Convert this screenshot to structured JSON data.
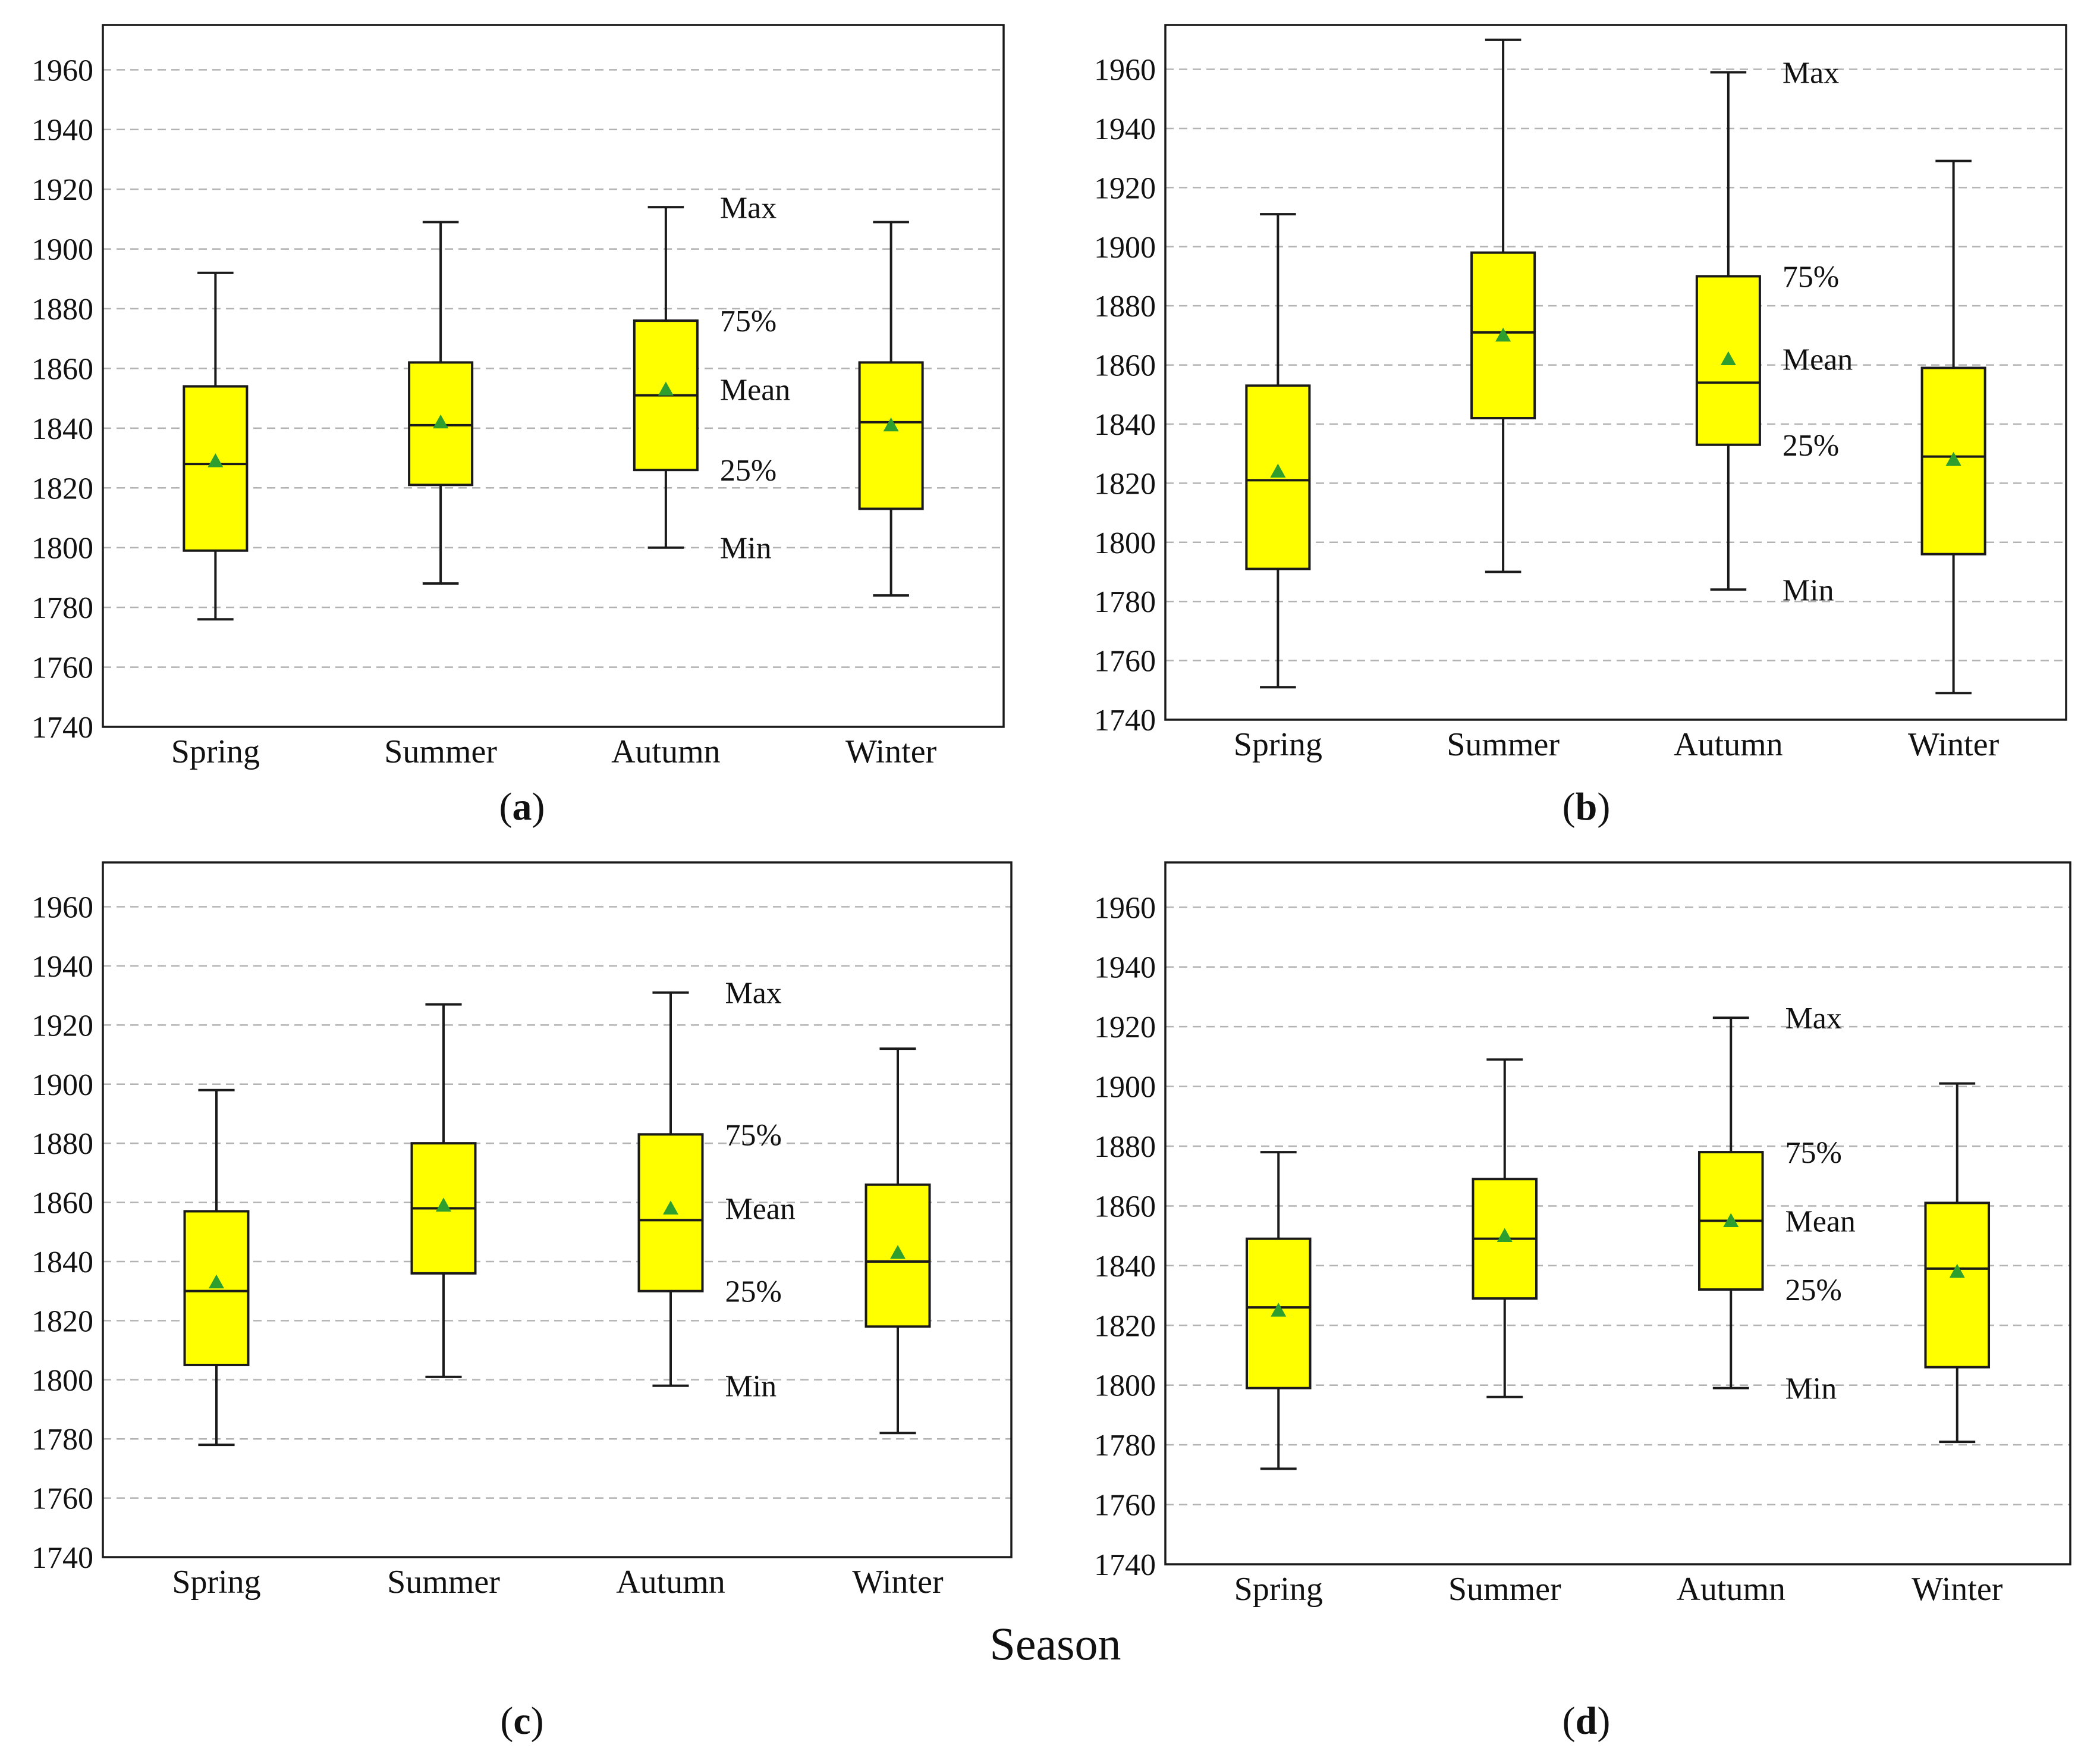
{
  "figure": {
    "xlabel": "Season"
  },
  "style": {
    "box_fill": "#ffff00",
    "box_stroke": "#1a1a1a",
    "mean_marker": "#2e9e2e",
    "grid_color": "#b3b3b3",
    "frame_color": "#1a1a1a"
  },
  "chart_data": [
    {
      "type": "box",
      "panel_label": {
        "open": "(",
        "letter": "a",
        "close": ")"
      },
      "categories": [
        "Spring",
        "Summer",
        "Autumn",
        "Winter"
      ],
      "ylim": [
        1740,
        1975
      ],
      "yticks": [
        1740,
        1760,
        1780,
        1800,
        1820,
        1840,
        1860,
        1880,
        1900,
        1920,
        1940,
        1960
      ],
      "grid": true,
      "boxes": [
        {
          "min": 1776,
          "q1": 1799,
          "median": 1828,
          "q3": 1854,
          "max": 1892,
          "mean": 1829
        },
        {
          "min": 1788,
          "q1": 1821,
          "median": 1841,
          "q3": 1862,
          "max": 1909,
          "mean": 1842
        },
        {
          "min": 1800,
          "q1": 1826,
          "median": 1851,
          "q3": 1876,
          "max": 1914,
          "mean": 1853
        },
        {
          "min": 1784,
          "q1": 1813,
          "median": 1842,
          "q3": 1862,
          "max": 1909,
          "mean": 1841
        }
      ],
      "annotation_box": 2,
      "annotations": [
        "Max",
        "75%",
        "Mean",
        "25%",
        "Min"
      ]
    },
    {
      "type": "box",
      "panel_label": {
        "open": "(",
        "letter": "b",
        "close": ")"
      },
      "categories": [
        "Spring",
        "Summer",
        "Autumn",
        "Winter"
      ],
      "ylim": [
        1740,
        1975
      ],
      "yticks": [
        1740,
        1760,
        1780,
        1800,
        1820,
        1840,
        1860,
        1880,
        1900,
        1920,
        1940,
        1960
      ],
      "grid": true,
      "boxes": [
        {
          "min": 1751,
          "q1": 1791,
          "median": 1821,
          "q3": 1853,
          "max": 1911,
          "mean": 1824
        },
        {
          "min": 1790,
          "q1": 1842,
          "median": 1871,
          "q3": 1898,
          "max": 1970,
          "mean": 1870
        },
        {
          "min": 1784,
          "q1": 1833,
          "median": 1854,
          "q3": 1890,
          "max": 1959,
          "mean": 1862
        },
        {
          "min": 1749,
          "q1": 1796,
          "median": 1829,
          "q3": 1859,
          "max": 1929,
          "mean": 1828
        }
      ],
      "annotation_box": 2,
      "annotations": [
        "Max",
        "75%",
        "Mean",
        "25%",
        "Min"
      ]
    },
    {
      "type": "box",
      "panel_label": {
        "open": "(",
        "letter": "c",
        "close": ")"
      },
      "categories": [
        "Spring",
        "Summer",
        "Autumn",
        "Winter"
      ],
      "ylim": [
        1740,
        1975
      ],
      "yticks": [
        1740,
        1760,
        1780,
        1800,
        1820,
        1840,
        1860,
        1880,
        1900,
        1920,
        1940,
        1960
      ],
      "grid": true,
      "boxes": [
        {
          "min": 1778,
          "q1": 1805,
          "median": 1830,
          "q3": 1857,
          "max": 1898,
          "mean": 1833
        },
        {
          "min": 1801,
          "q1": 1836,
          "median": 1858,
          "q3": 1880,
          "max": 1927,
          "mean": 1859
        },
        {
          "min": 1798,
          "q1": 1830,
          "median": 1854,
          "q3": 1883,
          "max": 1931,
          "mean": 1858
        },
        {
          "min": 1782,
          "q1": 1818,
          "median": 1840,
          "q3": 1866,
          "max": 1912,
          "mean": 1843
        }
      ],
      "annotation_box": 2,
      "annotations": [
        "Max",
        "75%",
        "Mean",
        "25%",
        "Min"
      ]
    },
    {
      "type": "box",
      "panel_label": {
        "open": "(",
        "letter": "d",
        "close": ")"
      },
      "categories": [
        "Spring",
        "Summer",
        "Autumn",
        "Winter"
      ],
      "ylim": [
        1740,
        1975
      ],
      "yticks": [
        1740,
        1760,
        1780,
        1800,
        1820,
        1840,
        1860,
        1880,
        1900,
        1920,
        1940,
        1960
      ],
      "grid": true,
      "boxes": [
        {
          "min": 1772,
          "q1": 1799,
          "median": 1826,
          "q3": 1849,
          "max": 1878,
          "mean": 1825
        },
        {
          "min": 1796,
          "q1": 1829,
          "median": 1849,
          "q3": 1869,
          "max": 1909,
          "mean": 1850
        },
        {
          "min": 1799,
          "q1": 1832,
          "median": 1855,
          "q3": 1878,
          "max": 1923,
          "mean": 1855
        },
        {
          "min": 1781,
          "q1": 1806,
          "median": 1839,
          "q3": 1861,
          "max": 1901,
          "mean": 1838
        }
      ],
      "annotation_box": 2,
      "annotations": [
        "Max",
        "75%",
        "Mean",
        "25%",
        "Min"
      ]
    }
  ]
}
